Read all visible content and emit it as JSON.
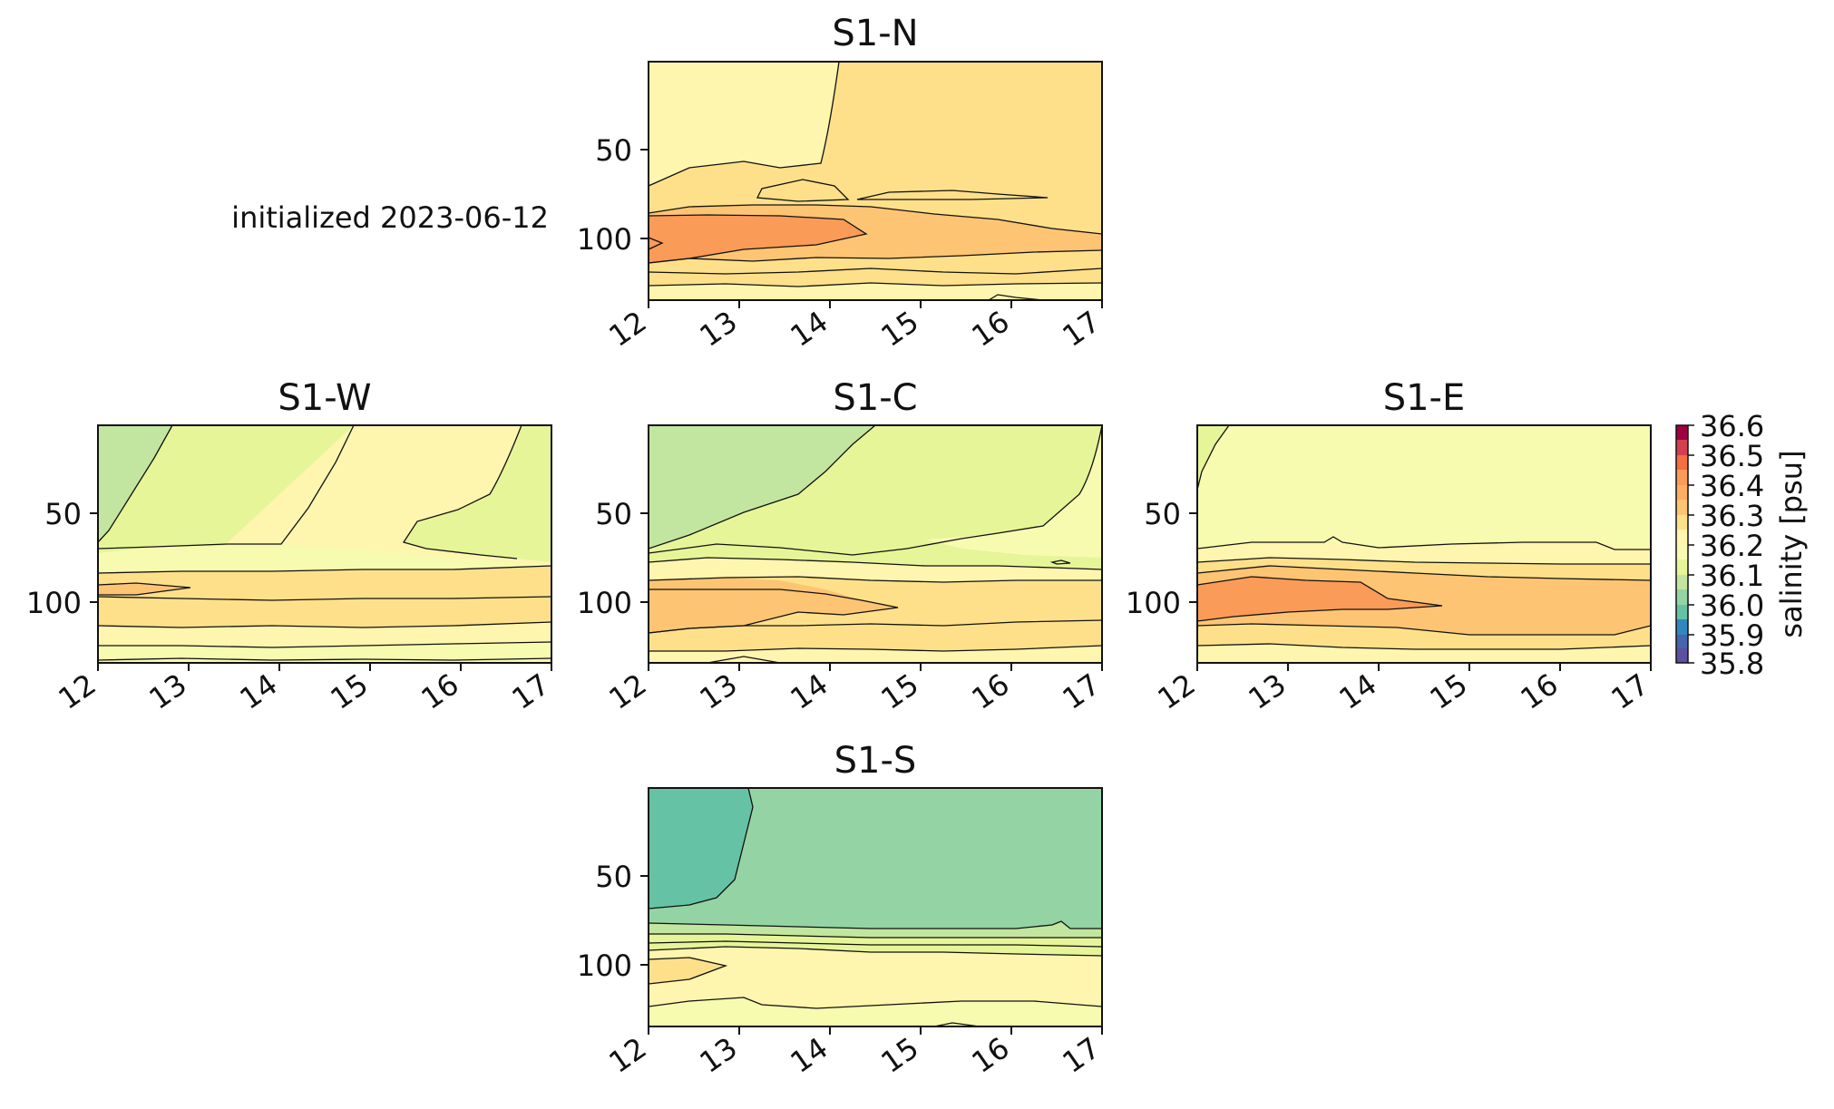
{
  "figure": {
    "annotation": "initialized 2023-06-12",
    "colorbar_label": "salinity [psu]",
    "colorbar_ticks": [
      "36.6",
      "36.5",
      "36.4",
      "36.3",
      "36.2",
      "36.1",
      "36.0",
      "35.9",
      "35.8"
    ]
  },
  "colors": {
    "35.8": "#5e4fa2",
    "35.9": "#3288bd",
    "36.0": "#66c2a5",
    "36.05": "#94d4a4",
    "36.1": "#c2e69f",
    "36.15": "#e6f598",
    "36.2": "#f7fbb0",
    "36.25": "#fef5af",
    "36.3": "#fee08b",
    "36.35": "#fdc474",
    "36.4": "#fa9b58",
    "36.5": "#d53e4f",
    "36.6": "#9e0142"
  },
  "chart_data": [
    {
      "type": "contour",
      "title": "S1-N",
      "x_ticks": [
        "12",
        "13",
        "14",
        "15",
        "16",
        "17"
      ],
      "y_ticks": [
        "50",
        "100"
      ],
      "xlim": [
        12,
        17
      ],
      "ylim": [
        135,
        0
      ],
      "bands": [
        {
          "depth_top": 0,
          "depth_bottom": 70,
          "salinity": 36.25
        },
        {
          "depth_top": 70,
          "depth_bottom": 85,
          "salinity": 36.3
        },
        {
          "depth_top": 85,
          "depth_bottom": 110,
          "salinity": 36.4
        },
        {
          "depth_top": 110,
          "depth_bottom": 135,
          "salinity": 36.3
        }
      ]
    },
    {
      "type": "contour",
      "title": "S1-W",
      "x_ticks": [
        "12",
        "13",
        "14",
        "15",
        "16",
        "17"
      ],
      "y_ticks": [
        "50",
        "100"
      ],
      "xlim": [
        12,
        17
      ],
      "ylim": [
        135,
        0
      ],
      "bands": [
        {
          "depth_top": 0,
          "depth_bottom": 70,
          "salinity": 36.15
        },
        {
          "depth_top": 70,
          "depth_bottom": 85,
          "salinity": 36.25
        },
        {
          "depth_top": 85,
          "depth_bottom": 115,
          "salinity": 36.3
        },
        {
          "depth_top": 115,
          "depth_bottom": 135,
          "salinity": 36.2
        }
      ]
    },
    {
      "type": "contour",
      "title": "S1-C",
      "x_ticks": [
        "12",
        "13",
        "14",
        "15",
        "16",
        "17"
      ],
      "y_ticks": [
        "50",
        "100"
      ],
      "xlim": [
        12,
        17
      ],
      "ylim": [
        135,
        0
      ],
      "bands": [
        {
          "depth_top": 0,
          "depth_bottom": 70,
          "salinity": 36.15
        },
        {
          "depth_top": 70,
          "depth_bottom": 85,
          "salinity": 36.25
        },
        {
          "depth_top": 85,
          "depth_bottom": 115,
          "salinity": 36.35
        },
        {
          "depth_top": 115,
          "depth_bottom": 135,
          "salinity": 36.25
        }
      ]
    },
    {
      "type": "contour",
      "title": "S1-E",
      "x_ticks": [
        "12",
        "13",
        "14",
        "15",
        "16",
        "17"
      ],
      "y_ticks": [
        "50",
        "100"
      ],
      "xlim": [
        12,
        17
      ],
      "ylim": [
        135,
        0
      ],
      "bands": [
        {
          "depth_top": 0,
          "depth_bottom": 70,
          "salinity": 36.2
        },
        {
          "depth_top": 70,
          "depth_bottom": 85,
          "salinity": 36.3
        },
        {
          "depth_top": 85,
          "depth_bottom": 115,
          "salinity": 36.4
        },
        {
          "depth_top": 115,
          "depth_bottom": 135,
          "salinity": 36.3
        }
      ]
    },
    {
      "type": "contour",
      "title": "S1-S",
      "x_ticks": [
        "12",
        "13",
        "14",
        "15",
        "16",
        "17"
      ],
      "y_ticks": [
        "50",
        "100"
      ],
      "xlim": [
        12,
        17
      ],
      "ylim": [
        135,
        0
      ],
      "bands": [
        {
          "depth_top": 0,
          "depth_bottom": 75,
          "salinity": 36.05
        },
        {
          "depth_top": 75,
          "depth_bottom": 90,
          "salinity": 36.15
        },
        {
          "depth_top": 90,
          "depth_bottom": 135,
          "salinity": 36.25
        }
      ]
    }
  ]
}
